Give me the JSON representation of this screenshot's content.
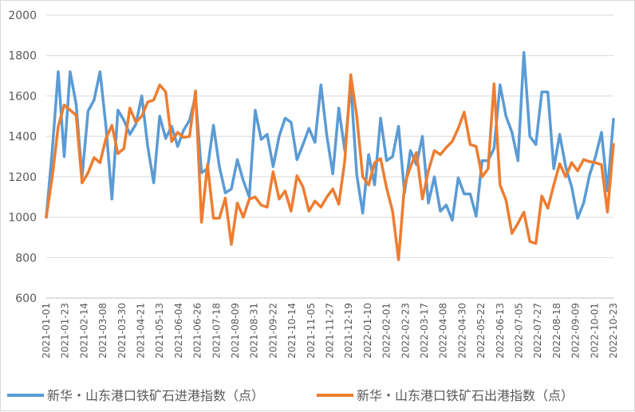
{
  "chart_data": {
    "type": "line",
    "ylim": [
      600,
      2000
    ],
    "yticks": [
      600,
      800,
      1000,
      1200,
      1400,
      1600,
      1800,
      2000
    ],
    "grid": "horizontal",
    "legend_position": "bottom",
    "x_tick_labels": [
      "2021-01-01",
      "2021-01-23",
      "2021-02-14",
      "2021-03-08",
      "2021-03-30",
      "2021-04-21",
      "2021-05-13",
      "2021-06-04",
      "2021-06-26",
      "2021-07-18",
      "2021-08-09",
      "2021-08-31",
      "2021-09-22",
      "2021-10-14",
      "2021-11-05",
      "2021-11-27",
      "2021-12-19",
      "2022-01-10",
      "2022-02-01",
      "2022-02-23",
      "2022-03-17",
      "2022-04-08",
      "2022-04-30",
      "2022-05-22",
      "2022-06-13",
      "2022-07-05",
      "2022-07-27",
      "2022-08-18",
      "2022-09-09",
      "2022-10-01",
      "2022-10-23"
    ],
    "series": [
      {
        "name": "新华・山东港口铁矿石进港指数（点）",
        "color": "#5b9bd5",
        "values": [
          1000,
          1330,
          1720,
          1300,
          1720,
          1560,
          1200,
          1525,
          1580,
          1720,
          1450,
          1090,
          1530,
          1480,
          1410,
          1460,
          1600,
          1350,
          1170,
          1500,
          1390,
          1450,
          1350,
          1430,
          1480,
          1600,
          1220,
          1240,
          1455,
          1250,
          1120,
          1140,
          1285,
          1180,
          1100,
          1530,
          1385,
          1410,
          1250,
          1400,
          1490,
          1470,
          1285,
          1360,
          1440,
          1370,
          1655,
          1400,
          1215,
          1540,
          1330,
          1660,
          1210,
          1020,
          1310,
          1160,
          1490,
          1280,
          1300,
          1450,
          1120,
          1330,
          1260,
          1400,
          1070,
          1200,
          1030,
          1060,
          985,
          1195,
          1115,
          1115,
          1005,
          1280,
          1280,
          1340,
          1655,
          1500,
          1420,
          1280,
          1815,
          1400,
          1360,
          1620,
          1620,
          1240,
          1410,
          1250,
          1150,
          995,
          1070,
          1210,
          1300,
          1420,
          1130,
          1485
        ]
      },
      {
        "name": "新华・山东港口铁矿石出港指数（点）",
        "color": "#ed7d31",
        "values": [
          1000,
          1200,
          1450,
          1555,
          1530,
          1505,
          1170,
          1220,
          1295,
          1270,
          1390,
          1455,
          1315,
          1340,
          1540,
          1470,
          1500,
          1570,
          1580,
          1655,
          1620,
          1375,
          1420,
          1395,
          1400,
          1625,
          975,
          1260,
          995,
          995,
          1095,
          865,
          1070,
          1000,
          1090,
          1100,
          1060,
          1050,
          1225,
          1090,
          1130,
          1030,
          1205,
          1150,
          1030,
          1080,
          1050,
          1100,
          1140,
          1065,
          1280,
          1705,
          1500,
          1200,
          1160,
          1270,
          1290,
          1145,
          1030,
          790,
          1160,
          1250,
          1320,
          1090,
          1230,
          1330,
          1310,
          1345,
          1375,
          1440,
          1520,
          1360,
          1350,
          1200,
          1240,
          1660,
          1160,
          1085,
          920,
          970,
          1025,
          880,
          870,
          1105,
          1045,
          1160,
          1265,
          1200,
          1270,
          1230,
          1285,
          1275,
          1270,
          1260,
          1025,
          1360
        ]
      }
    ]
  }
}
